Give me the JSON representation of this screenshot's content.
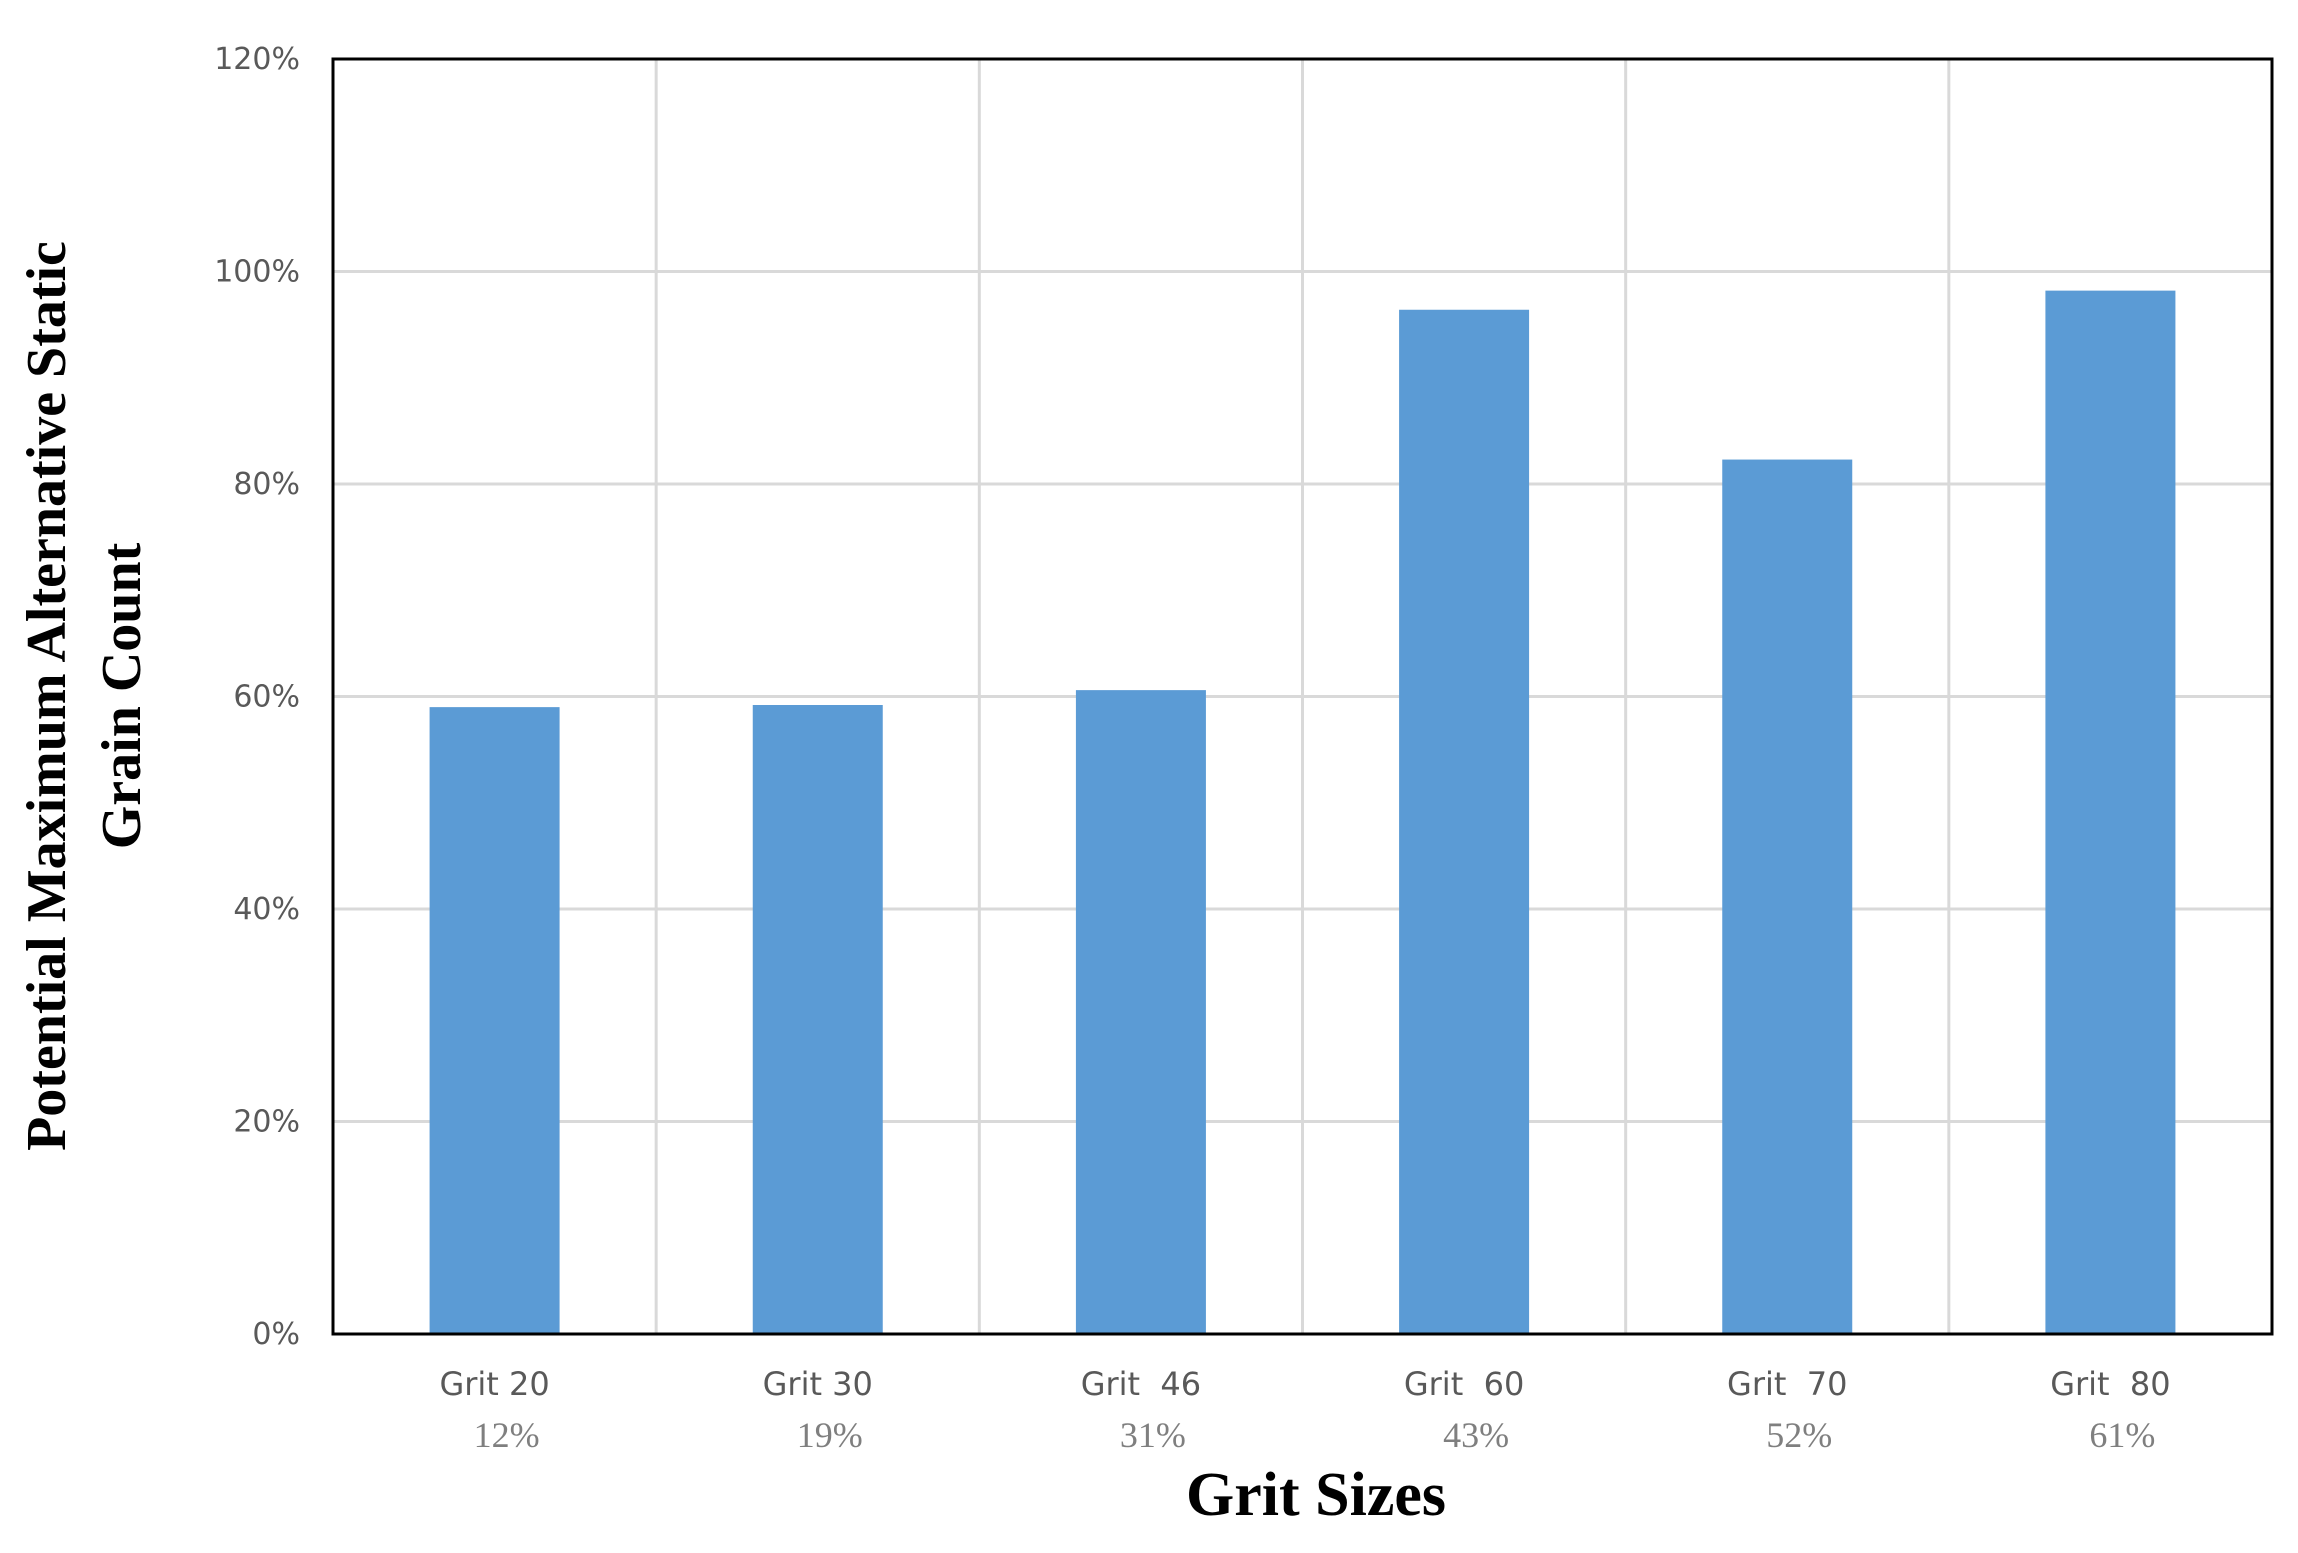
{
  "chart_data": {
    "type": "bar",
    "title": "",
    "xlabel": "Grit Sizes",
    "ylabel": [
      "Potential Maximum Alternative Static",
      "Grain Count"
    ],
    "categories": [
      "Grit 20",
      "Grit 30",
      "Grit  46",
      "Grit  60",
      "Grit  70",
      "Grit  80"
    ],
    "category_sublabels": [
      "12%",
      "19%",
      "31%",
      "43%",
      "52%",
      "61%"
    ],
    "values": [
      0.59,
      0.592,
      0.606,
      0.964,
      0.823,
      0.982
    ],
    "ylim": [
      0,
      1.2
    ],
    "yticks": [
      0,
      0.2,
      0.4,
      0.6,
      0.8,
      1.0,
      1.2
    ],
    "ytick_labels": [
      "0%",
      "20%",
      "40%",
      "60%",
      "80%",
      "100%",
      "120%"
    ],
    "grid": true,
    "legend": "none",
    "colors": {
      "bar": "#5b9bd5",
      "grid": "#d9d9d9",
      "axis": "#000000"
    }
  }
}
